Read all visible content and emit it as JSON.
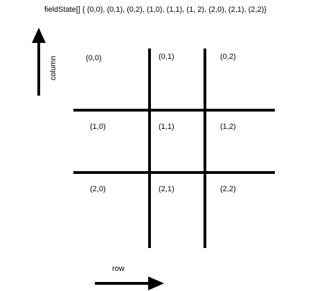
{
  "title": "fieldState[] { (0,0), (0,1), (0,2), (1,0), (1,1), (1, 2), (2,0), (2,1), (2,2)}",
  "axes": {
    "row_label": "row",
    "column_label": "column"
  },
  "cells": [
    {
      "label": "(0,0)"
    },
    {
      "label": "(0,1)"
    },
    {
      "label": "(0,2)"
    },
    {
      "label": "(1,0)"
    },
    {
      "label": "(1,1)"
    },
    {
      "label": "(1,2)"
    },
    {
      "label": "(2,0)"
    },
    {
      "label": "(2,1)"
    },
    {
      "label": "(2,2)"
    }
  ],
  "colors": {
    "lines": "#000000",
    "background": "#ffffff"
  }
}
